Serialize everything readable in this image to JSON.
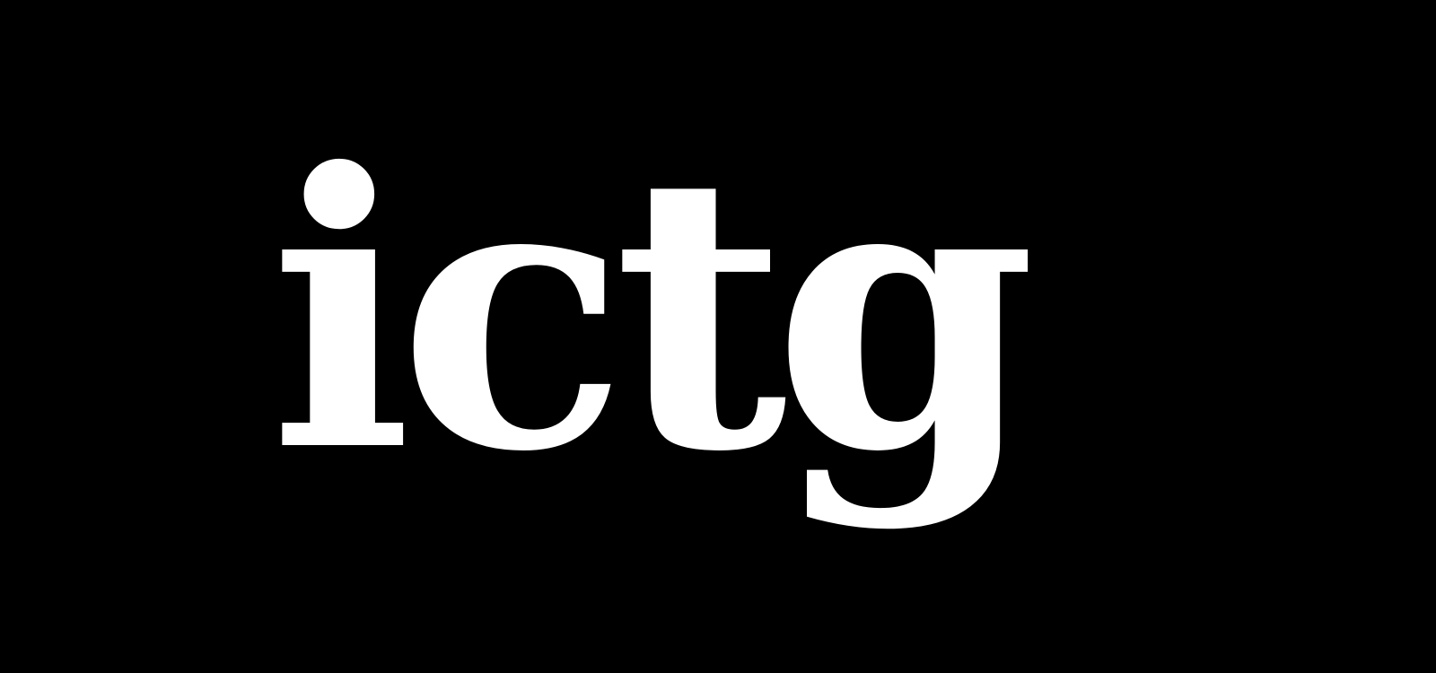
{
  "logo": {
    "text": "ictg",
    "text_color": "#ffffff",
    "background_color": "#000000"
  }
}
